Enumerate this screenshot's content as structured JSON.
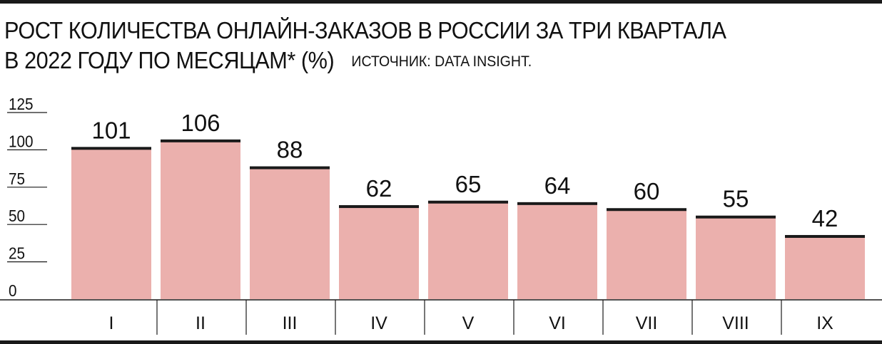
{
  "header": {
    "title_line1": "РОСТ КОЛИЧЕСТВА ОНЛАЙН-ЗАКАЗОВ В РОССИИ ЗА ТРИ КВАРТАЛА",
    "title_line2": "В 2022 ГОДУ ПО МЕСЯЦАМ* (%)",
    "source": "ИСТОЧНИК: DATA INSIGHT."
  },
  "colors": {
    "bar_fill": "#ebb0ad",
    "bar_top": "#1a1a1a",
    "axis": "#1a1a1a",
    "text": "#111111",
    "background": "#ffffff"
  },
  "chart_data": {
    "type": "bar",
    "title": "РОСТ КОЛИЧЕСТВА ОНЛАЙН-ЗАКАЗОВ В РОССИИ ЗА ТРИ КВАРТАЛА В 2022 ГОДУ ПО МЕСЯЦАМ* (%)",
    "source": "ИСТОЧНИК: DATA INSIGHT.",
    "categories": [
      "I",
      "II",
      "III",
      "IV",
      "V",
      "VI",
      "VII",
      "VIII",
      "IX"
    ],
    "values": [
      101,
      106,
      88,
      62,
      65,
      64,
      60,
      55,
      42
    ],
    "data_labels": [
      "101",
      "106",
      "88",
      "62",
      "65",
      "64",
      "60",
      "55",
      "42"
    ],
    "ylim": [
      0,
      125
    ],
    "yticks": [
      0,
      25,
      50,
      75,
      100,
      125
    ],
    "ytick_labels": [
      "0",
      "25",
      "50",
      "75",
      "100",
      "125"
    ],
    "xlabel": "",
    "ylabel": "",
    "grid": false,
    "legend": false
  }
}
